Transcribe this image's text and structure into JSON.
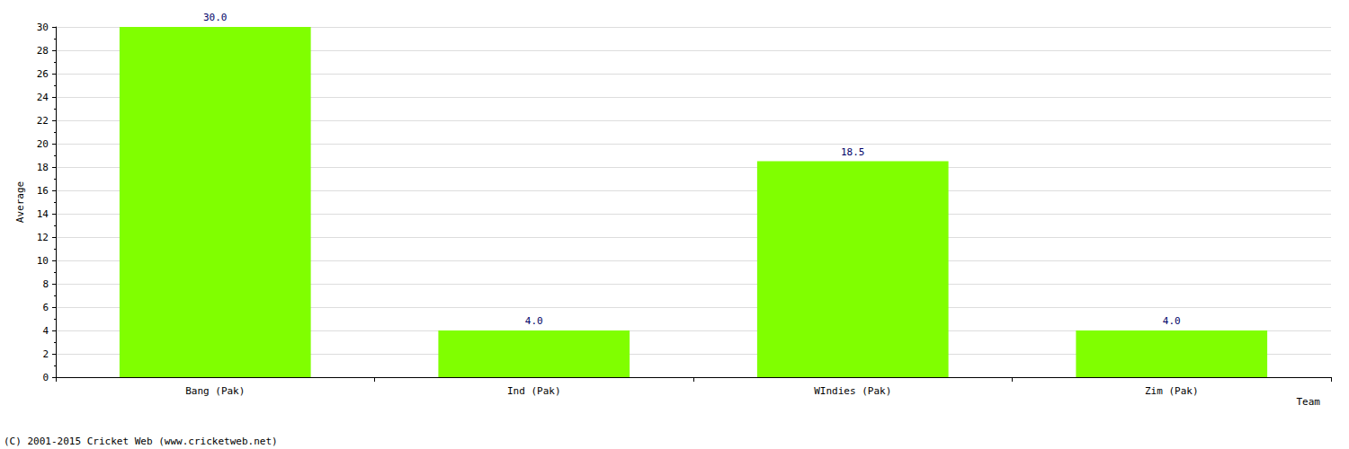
{
  "chart_data": {
    "type": "bar",
    "categories": [
      "Bang (Pak)",
      "Ind (Pak)",
      "WIndies (Pak)",
      "Zim (Pak)"
    ],
    "values": [
      30,
      4,
      18.5,
      4
    ],
    "value_labels": [
      "30.0",
      "4.0",
      "18.5",
      "4.0"
    ],
    "data_labels": true,
    "color": "#80ff00",
    "x_label": "Team",
    "y_label": "Average",
    "ylim": [
      0,
      30
    ],
    "yticks": [
      0,
      2,
      4,
      6,
      8,
      10,
      12,
      14,
      16,
      18,
      20,
      22,
      24,
      26,
      28,
      30
    ],
    "grid": true,
    "annotations": [
      "(C) 2001-2015 Cricket Web (www.cricketweb.net)"
    ]
  }
}
